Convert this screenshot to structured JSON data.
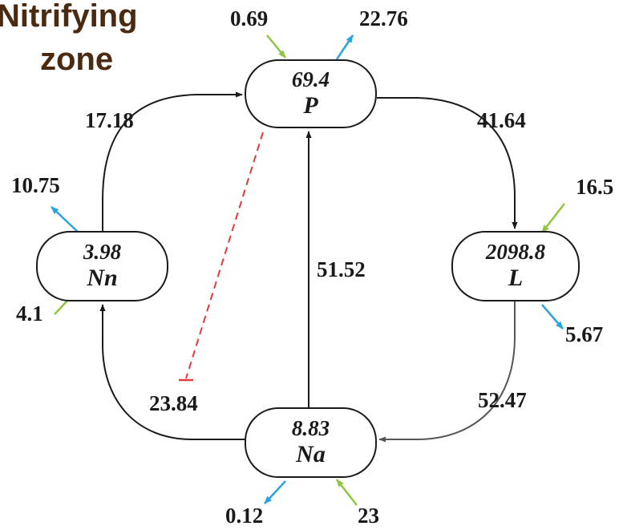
{
  "title": {
    "line1": "Nitrifying",
    "line2": "zone"
  },
  "nodes": {
    "P": {
      "value": "69.4",
      "label": "P"
    },
    "Nn": {
      "value": "3.98",
      "label": "Nn"
    },
    "L": {
      "value": "2098.8",
      "label": "L"
    },
    "Na": {
      "value": "8.83",
      "label": "Na"
    }
  },
  "flows": {
    "nn_to_p": "17.18",
    "p_to_l": "41.64",
    "na_to_p": "51.52",
    "l_to_na": "52.47",
    "na_to_nn": "23.84",
    "p_input": "0.69",
    "p_output": "22.76",
    "nn_output": "10.75",
    "nn_input": "4.1",
    "l_input": "16.5",
    "l_output": "5.67",
    "na_output": "0.12",
    "na_input": "23"
  },
  "colors": {
    "input_arrow": "#8dc63f",
    "output_arrow": "#29a3e0",
    "inhibition": "#e03a3a",
    "edge": "#1a1a1a"
  }
}
